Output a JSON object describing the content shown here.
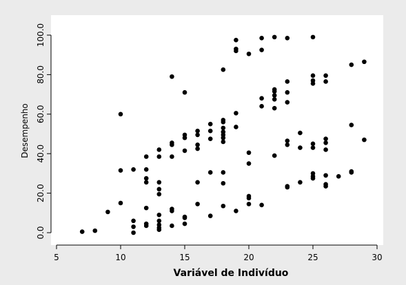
{
  "chart_data": {
    "type": "scatter",
    "title": "",
    "xlabel": "Variável de Indivíduo",
    "ylabel": "Desempenho",
    "xlim": [
      4,
      31
    ],
    "ylim": [
      -4,
      108
    ],
    "xticks": [
      "5",
      "10",
      "15",
      "20",
      "25",
      "30"
    ],
    "yticks": [
      "0.0",
      "20.0",
      "40.0",
      "60.0",
      "80.0",
      "100.0"
    ],
    "xtick_values": [
      5,
      10,
      15,
      20,
      25,
      30
    ],
    "ytick_values": [
      0,
      20,
      40,
      60,
      80,
      100
    ],
    "grid": false,
    "marker_color": "#000000",
    "background_color": "#ebebeb",
    "plot_background": "#ffffff",
    "points": [
      [
        7,
        0.5
      ],
      [
        8,
        1
      ],
      [
        9,
        10.5
      ],
      [
        10,
        15
      ],
      [
        10,
        31.5
      ],
      [
        10,
        60
      ],
      [
        11,
        0
      ],
      [
        11,
        3
      ],
      [
        11,
        6
      ],
      [
        11,
        32
      ],
      [
        12,
        3.5
      ],
      [
        12,
        4.5
      ],
      [
        12,
        12.5
      ],
      [
        12,
        25.5
      ],
      [
        12,
        27.5
      ],
      [
        12,
        32
      ],
      [
        12,
        38.5
      ],
      [
        13,
        1.5
      ],
      [
        13,
        2.5
      ],
      [
        13,
        4
      ],
      [
        13,
        6
      ],
      [
        13,
        9
      ],
      [
        13,
        19.5
      ],
      [
        13,
        22
      ],
      [
        13,
        25.5
      ],
      [
        13,
        38.5
      ],
      [
        13,
        42
      ],
      [
        14,
        3.5
      ],
      [
        14,
        11
      ],
      [
        14,
        12
      ],
      [
        14,
        38.5
      ],
      [
        14,
        44.5
      ],
      [
        14,
        45.5
      ],
      [
        14,
        79
      ],
      [
        15,
        4.5
      ],
      [
        15,
        7.5
      ],
      [
        15,
        8
      ],
      [
        15,
        41.5
      ],
      [
        15,
        48
      ],
      [
        15,
        49.5
      ],
      [
        15,
        71
      ],
      [
        16,
        14.5
      ],
      [
        16,
        25.5
      ],
      [
        16,
        42.5
      ],
      [
        16,
        44.5
      ],
      [
        16,
        49.5
      ],
      [
        16,
        51.5
      ],
      [
        17,
        8.5
      ],
      [
        17,
        30.5
      ],
      [
        17,
        47.5
      ],
      [
        17,
        51.5
      ],
      [
        17,
        55
      ],
      [
        18,
        13.5
      ],
      [
        18,
        25
      ],
      [
        18,
        30.5
      ],
      [
        18,
        46
      ],
      [
        18,
        48
      ],
      [
        18,
        49.5
      ],
      [
        18,
        51
      ],
      [
        18,
        53
      ],
      [
        18,
        56
      ],
      [
        18,
        57
      ],
      [
        18,
        82.5
      ],
      [
        19,
        11
      ],
      [
        19,
        53.5
      ],
      [
        19,
        60.5
      ],
      [
        19,
        92
      ],
      [
        19,
        93
      ],
      [
        19,
        97.5
      ],
      [
        20,
        14.5
      ],
      [
        20,
        17.5
      ],
      [
        20,
        18.5
      ],
      [
        20,
        35
      ],
      [
        20,
        40.5
      ],
      [
        20,
        90.5
      ],
      [
        21,
        14
      ],
      [
        21,
        64
      ],
      [
        21,
        68
      ],
      [
        21,
        92.5
      ],
      [
        21,
        98.5
      ],
      [
        22,
        39
      ],
      [
        22,
        63
      ],
      [
        22,
        67.5
      ],
      [
        22,
        69.5
      ],
      [
        22,
        71.5
      ],
      [
        22,
        72.5
      ],
      [
        22,
        99
      ],
      [
        23,
        23
      ],
      [
        23,
        23.5
      ],
      [
        23,
        44.5
      ],
      [
        23,
        46.5
      ],
      [
        23,
        66
      ],
      [
        23,
        71
      ],
      [
        23,
        76.5
      ],
      [
        23,
        98.5
      ],
      [
        24,
        25.5
      ],
      [
        24,
        43
      ],
      [
        24,
        50.5
      ],
      [
        25,
        27.5
      ],
      [
        25,
        28.5
      ],
      [
        25,
        30
      ],
      [
        25,
        43
      ],
      [
        25,
        45
      ],
      [
        25,
        75.5
      ],
      [
        25,
        77
      ],
      [
        25,
        79.5
      ],
      [
        25,
        99
      ],
      [
        26,
        23.5
      ],
      [
        26,
        24.5
      ],
      [
        26,
        29
      ],
      [
        26,
        42
      ],
      [
        26,
        45.5
      ],
      [
        26,
        47.5
      ],
      [
        26,
        76.5
      ],
      [
        26,
        79.5
      ],
      [
        27,
        28.5
      ],
      [
        28,
        30.5
      ],
      [
        28,
        31
      ],
      [
        28,
        54.5
      ],
      [
        28,
        85
      ],
      [
        29,
        47
      ],
      [
        29,
        86.5
      ]
    ]
  }
}
